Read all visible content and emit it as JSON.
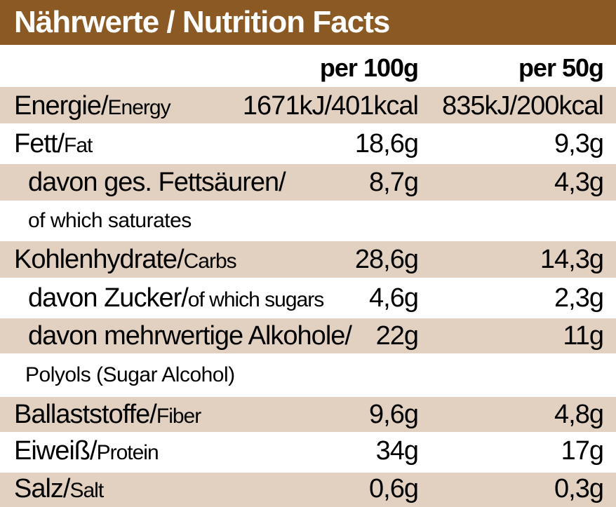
{
  "title": "Nährwerte / Nutrition Facts",
  "columns": {
    "per100": "per 100g",
    "per50": "per 50g"
  },
  "rows": {
    "energy": {
      "de": "Energie/",
      "en": "Energy",
      "v100": "1671kJ/401kcal",
      "v50": "835kJ/200kcal"
    },
    "fat": {
      "de": "Fett/",
      "en": "Fat",
      "v100": "18,6g",
      "v50": "9,3g"
    },
    "saturates": {
      "de": "davon ges. Fettsäuren/",
      "sub": "of which saturates",
      "v100": "8,7g",
      "v50": "4,3g"
    },
    "carbs": {
      "de": "Kohlenhydrate/",
      "en": "Carbs",
      "v100": "28,6g",
      "v50": "14,3g"
    },
    "sugars": {
      "de": "davon Zucker/",
      "en": "of which sugars",
      "v100": "4,6g",
      "v50": "2,3g"
    },
    "polyols": {
      "de": "davon mehrwertige Alkohole/",
      "sub": "Polyols (Sugar Alcohol)",
      "v100": "22g",
      "v50": "11g"
    },
    "fiber": {
      "de": "Ballaststoffe/",
      "en": "Fiber",
      "v100": "9,6g",
      "v50": "4,8g"
    },
    "protein": {
      "de": "Eiweiß/",
      "en": "Protein",
      "v100": "34g",
      "v50": "17g"
    },
    "salt": {
      "de": "Salz/",
      "en": "Salt",
      "v100": "0,6g",
      "v50": "0,3g"
    }
  },
  "colors": {
    "header": "#8b5a24",
    "shade": "#e2d0c0"
  }
}
